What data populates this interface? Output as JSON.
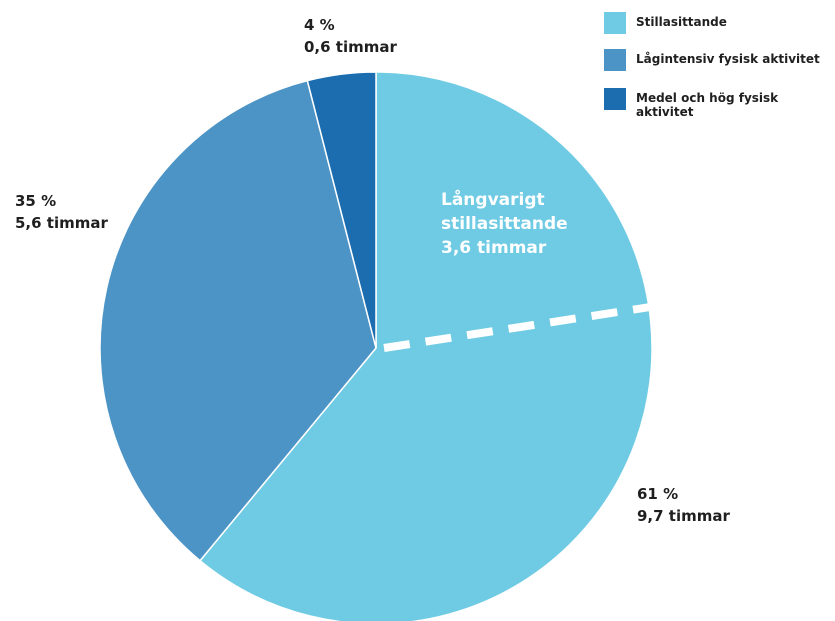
{
  "chart_data": {
    "type": "pie",
    "title": "",
    "slices": [
      {
        "name": "Stillasittande",
        "value": 61,
        "percent_label": "61 %",
        "hours_label": "9,7 timmar",
        "color": "#6ecbe3"
      },
      {
        "name": "Lågintensiv fysisk aktivitet",
        "value": 35,
        "percent_label": "35 %",
        "hours_label": "5,6 timmar",
        "color": "#4d94c6"
      },
      {
        "name": "Medel och hög fysisk aktivitet",
        "value": 4,
        "percent_label": "4 %",
        "hours_label": "0,6 timmar",
        "color": "#1c6daf"
      }
    ],
    "sub_segment": {
      "of": "Stillasittande",
      "label_line1": "Långvarigt",
      "label_line2": "stillasittande",
      "label_line3": "3,6 timmar",
      "hours": 3.6
    },
    "legend": {
      "position": "top-right",
      "entries": [
        "Stillasittande",
        "Lågintensiv fysisk aktivitet",
        "Medel och hög fysisk aktivitet"
      ]
    }
  }
}
